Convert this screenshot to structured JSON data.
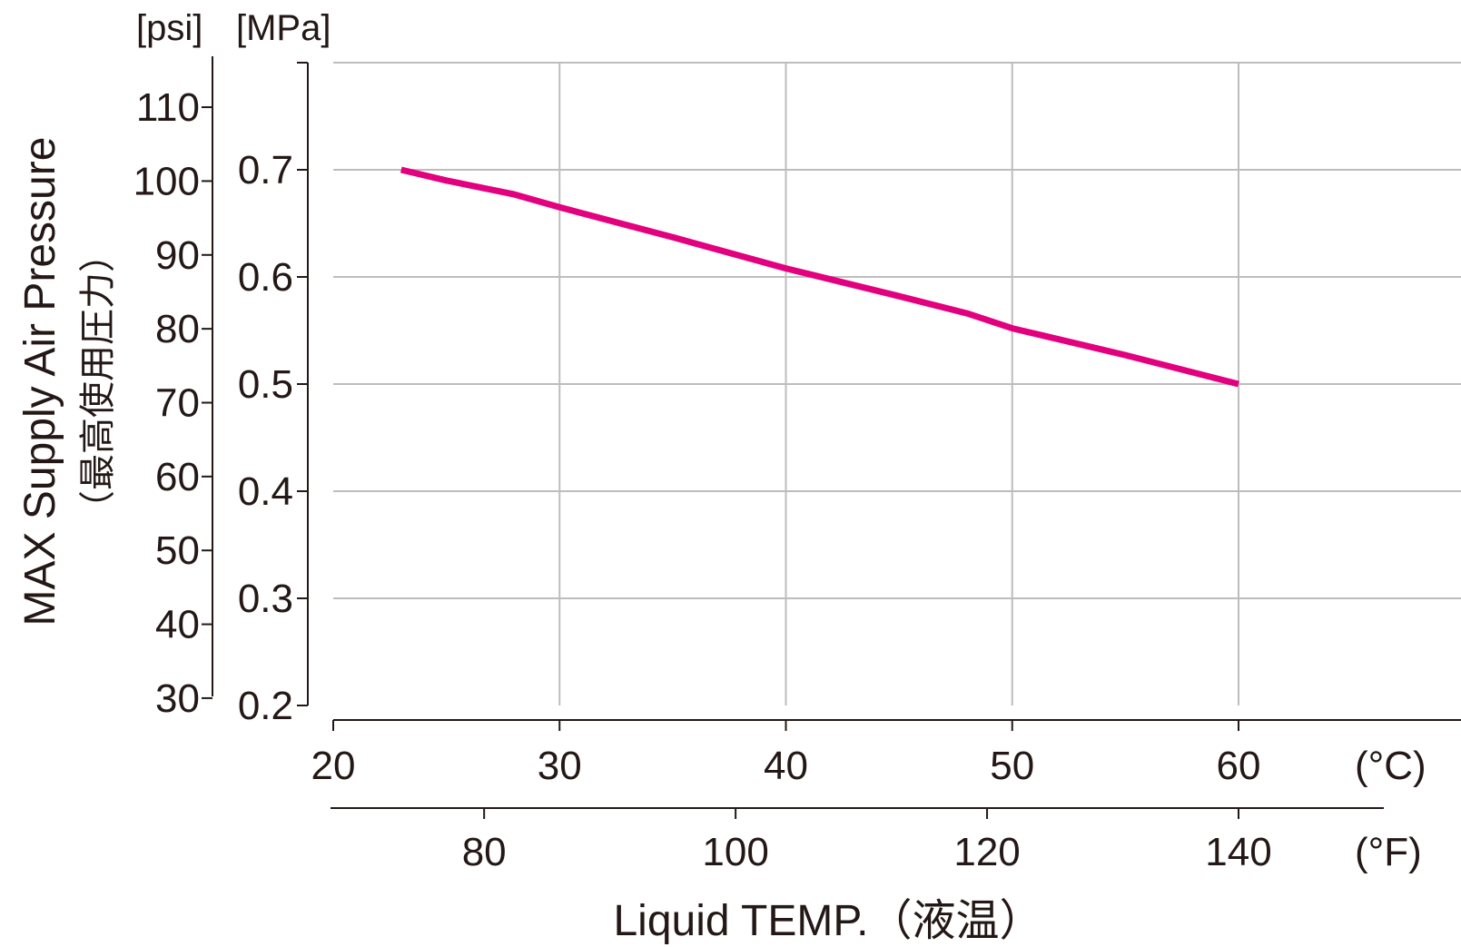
{
  "chart_data": {
    "type": "line",
    "x_primary": {
      "label": "(°C)",
      "ticks": [
        20,
        30,
        40,
        50,
        60
      ],
      "range": [
        20,
        70
      ]
    },
    "x_secondary": {
      "label": "(°F)",
      "ticks": [
        80,
        100,
        120,
        140
      ],
      "range": [
        68,
        158
      ]
    },
    "x_title": "Liquid TEMP.（液温）",
    "y_left": {
      "unit": "[psi]",
      "ticks": [
        30,
        40,
        50,
        60,
        70,
        80,
        90,
        100,
        110
      ],
      "range": [
        28.3,
        114
      ]
    },
    "y_right": {
      "unit": "[MPa]",
      "ticks": [
        0.2,
        0.3,
        0.4,
        0.5,
        0.6,
        0.7
      ],
      "range": [
        0.2,
        0.8
      ]
    },
    "y_title": "MAX Supply Air Pressure",
    "y_subtitle": "（最高使用圧力）",
    "series": [
      {
        "color": "#e3007f",
        "x": [
          23,
          25,
          28,
          30,
          35,
          40,
          45,
          48,
          50,
          55,
          60
        ],
        "y": [
          0.7,
          0.69,
          0.677,
          0.665,
          0.637,
          0.608,
          0.582,
          0.566,
          0.552,
          0.527,
          0.5
        ]
      }
    ],
    "grid": true
  }
}
